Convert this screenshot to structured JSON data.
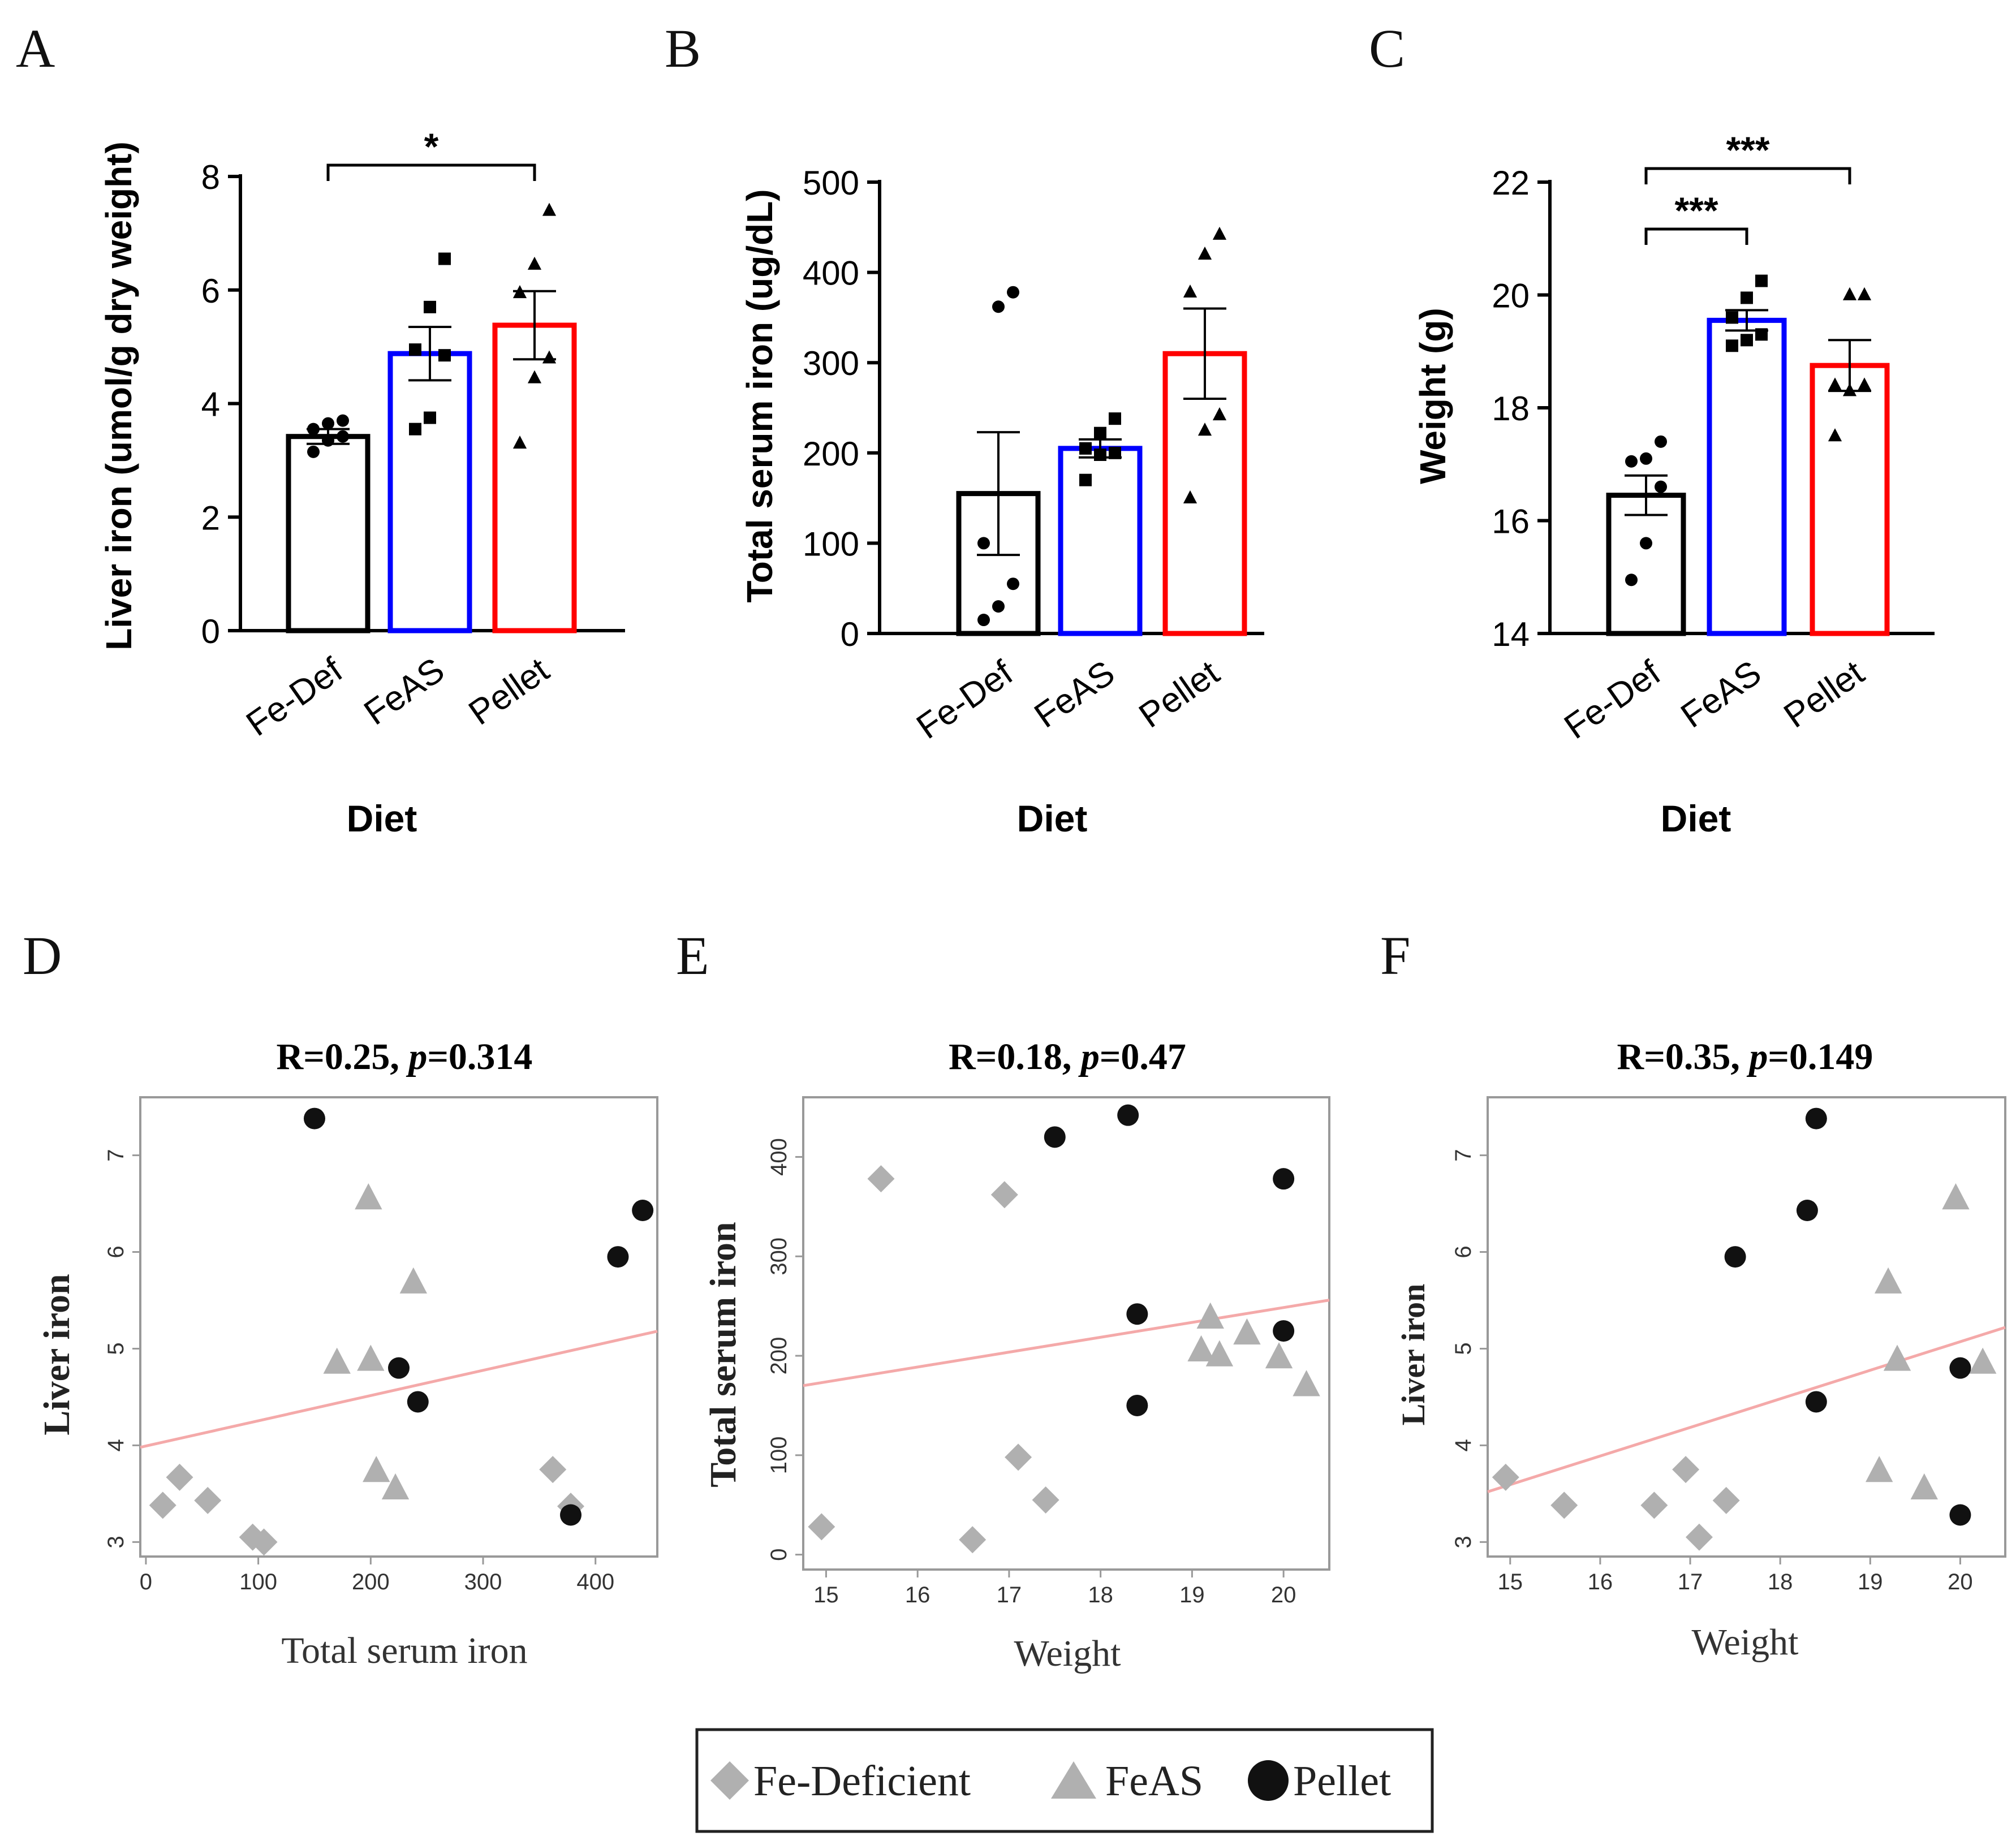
{
  "figure": {
    "legend": {
      "entries": [
        {
          "label": "Fe-Deficient",
          "shape": "diamond"
        },
        {
          "label": "FeAS",
          "shape": "triangle"
        },
        {
          "label": "Pellet",
          "shape": "circle"
        }
      ]
    }
  },
  "colors": {
    "fe_def": "#000000",
    "feas": "#0000ff",
    "pellet": "#ff0000",
    "scatter_gray": "#b0b0b0",
    "scatter_black": "#111111",
    "fit_line": "#f4a9a9",
    "frame": "#999999"
  },
  "chart_data": [
    {
      "panel": "A",
      "type": "bar",
      "title": "",
      "xlabel": "Diet",
      "ylabel": "Liver iron (umol/g dry weight)",
      "ylim": [
        0,
        8
      ],
      "yticks": [
        "0",
        "2",
        "4",
        "6",
        "8"
      ],
      "categories": [
        "Fe-Def",
        "FeAS",
        "Pellet"
      ],
      "series": [
        {
          "name": "Fe-Def",
          "mean": 3.42,
          "sem": 0.13,
          "marker": "circle",
          "points": [
            3.15,
            3.35,
            3.42,
            3.55,
            3.65,
            3.7
          ]
        },
        {
          "name": "FeAS",
          "mean": 4.88,
          "sem": 0.47,
          "marker": "square",
          "points": [
            3.55,
            3.75,
            4.85,
            4.95,
            5.7,
            6.55
          ]
        },
        {
          "name": "Pellet",
          "mean": 5.38,
          "sem": 0.6,
          "marker": "triangle",
          "points": [
            3.3,
            4.45,
            4.8,
            5.95,
            6.45,
            7.4
          ]
        }
      ],
      "significance": [
        {
          "from": "Fe-Def",
          "to": "Pellet",
          "label": "*"
        }
      ]
    },
    {
      "panel": "B",
      "type": "bar",
      "title": "",
      "xlabel": "Diet",
      "ylabel": "Total serum iron (ug/dL)",
      "ylim": [
        0,
        500
      ],
      "yticks": [
        "0",
        "100",
        "200",
        "300",
        "400",
        "500"
      ],
      "categories": [
        "Fe-Def",
        "FeAS",
        "Pellet"
      ],
      "series": [
        {
          "name": "Fe-Def",
          "mean": 155,
          "sem": 68,
          "marker": "circle",
          "points": [
            15,
            30,
            55,
            100,
            362,
            378
          ]
        },
        {
          "name": "FeAS",
          "mean": 205,
          "sem": 10,
          "marker": "square",
          "points": [
            170,
            198,
            200,
            205,
            222,
            238
          ]
        },
        {
          "name": "Pellet",
          "mean": 310,
          "sem": 50,
          "marker": "triangle",
          "points": [
            150,
            225,
            242,
            378,
            420,
            442
          ]
        }
      ],
      "significance": []
    },
    {
      "panel": "C",
      "type": "bar",
      "title": "",
      "xlabel": "Diet",
      "ylabel": "Weight (g)",
      "ylim": [
        14,
        22
      ],
      "yticks": [
        "14",
        "16",
        "18",
        "20",
        "22"
      ],
      "categories": [
        "Fe-Def",
        "FeAS",
        "Pellet"
      ],
      "series": [
        {
          "name": "Fe-Def",
          "mean": 16.45,
          "sem": 0.35,
          "marker": "circle",
          "points": [
            14.95,
            15.6,
            16.6,
            17.05,
            17.1,
            17.4
          ]
        },
        {
          "name": "FeAS",
          "mean": 19.55,
          "sem": 0.18,
          "marker": "square",
          "points": [
            19.1,
            19.2,
            19.3,
            19.6,
            19.95,
            20.25
          ]
        },
        {
          "name": "Pellet",
          "mean": 18.75,
          "sem": 0.45,
          "marker": "triangle",
          "points": [
            17.5,
            18.3,
            18.4,
            18.4,
            20.0,
            20.0
          ]
        }
      ],
      "significance": [
        {
          "from": "Fe-Def",
          "to": "FeAS",
          "label": "***"
        },
        {
          "from": "Fe-Def",
          "to": "Pellet",
          "label": "***"
        }
      ]
    },
    {
      "panel": "D",
      "type": "scatter",
      "title_r": "R=0.25, ",
      "title_p": "p",
      "title_val": "=0.314",
      "xlabel": "Total serum iron",
      "ylabel": "Liver iron",
      "xlim": [
        -5,
        455
      ],
      "ylim": [
        2.85,
        7.6
      ],
      "xticks": [
        0,
        100,
        200,
        300,
        400
      ],
      "yticks": [
        3,
        4,
        5,
        6,
        7
      ],
      "fit": {
        "x1": -5,
        "y1": 3.98,
        "x2": 455,
        "y2": 5.18
      },
      "series": [
        {
          "name": "Fe-Deficient",
          "shape": "diamond",
          "x": [
            15,
            30,
            55,
            95,
            105,
            362,
            378
          ],
          "y": [
            3.38,
            3.67,
            3.43,
            3.05,
            3.0,
            3.75,
            3.37
          ]
        },
        {
          "name": "FeAS",
          "shape": "triangle",
          "x": [
            170,
            198,
            200,
            205,
            222,
            238
          ],
          "y": [
            4.85,
            6.55,
            4.88,
            3.73,
            3.55,
            5.68
          ]
        },
        {
          "name": "Pellet",
          "shape": "circle",
          "x": [
            150,
            225,
            242,
            378,
            420,
            442
          ],
          "y": [
            7.38,
            4.8,
            4.45,
            3.28,
            5.95,
            6.43
          ]
        }
      ]
    },
    {
      "panel": "E",
      "type": "scatter",
      "title_r": "R=0.18, ",
      "title_p": "p",
      "title_val": "=0.47",
      "xlabel": "Weight",
      "ylabel": "Total serum iron",
      "xlim": [
        14.75,
        20.5
      ],
      "ylim": [
        -15,
        460
      ],
      "xticks": [
        15,
        16,
        17,
        18,
        19,
        20
      ],
      "yticks": [
        0,
        100,
        200,
        300,
        400
      ],
      "fit": {
        "x1": 14.75,
        "y1": 170,
        "x2": 20.5,
        "y2": 256
      },
      "series": [
        {
          "name": "Fe-Deficient",
          "shape": "diamond",
          "x": [
            14.95,
            15.6,
            16.6,
            16.95,
            17.1,
            17.4
          ],
          "y": [
            28,
            378,
            15,
            362,
            98,
            55
          ]
        },
        {
          "name": "FeAS",
          "shape": "triangle",
          "x": [
            19.1,
            19.2,
            19.3,
            19.6,
            19.95,
            20.25
          ],
          "y": [
            205,
            238,
            200,
            222,
            198,
            170
          ]
        },
        {
          "name": "Pellet",
          "shape": "circle",
          "x": [
            17.5,
            18.3,
            18.4,
            18.4,
            20.0,
            20.0
          ],
          "y": [
            420,
            442,
            242,
            150,
            378,
            225
          ]
        }
      ]
    },
    {
      "panel": "F",
      "type": "scatter",
      "title_r": "R=0.35, ",
      "title_p": "p",
      "title_val": "=0.149",
      "xlabel": "Weight",
      "ylabel": "Liver iron",
      "xlim": [
        14.75,
        20.5
      ],
      "ylim": [
        2.85,
        7.6
      ],
      "xticks": [
        15,
        16,
        17,
        18,
        19,
        20
      ],
      "yticks": [
        3,
        4,
        5,
        6,
        7
      ],
      "fit": {
        "x1": 14.75,
        "y1": 3.52,
        "x2": 20.5,
        "y2": 5.22
      },
      "series": [
        {
          "name": "Fe-Deficient",
          "shape": "diamond",
          "x": [
            14.95,
            15.6,
            16.6,
            16.95,
            17.1,
            17.4
          ],
          "y": [
            3.67,
            3.38,
            3.38,
            3.75,
            3.05,
            3.43
          ]
        },
        {
          "name": "FeAS",
          "shape": "triangle",
          "x": [
            19.1,
            19.2,
            19.3,
            19.6,
            19.95,
            20.25
          ],
          "y": [
            3.73,
            5.68,
            4.88,
            3.55,
            6.55,
            4.85
          ]
        },
        {
          "name": "Pellet",
          "shape": "circle",
          "x": [
            17.5,
            18.3,
            18.4,
            18.4,
            20.0,
            20.0
          ],
          "y": [
            5.95,
            6.43,
            7.38,
            4.45,
            4.8,
            3.28
          ]
        }
      ]
    }
  ]
}
